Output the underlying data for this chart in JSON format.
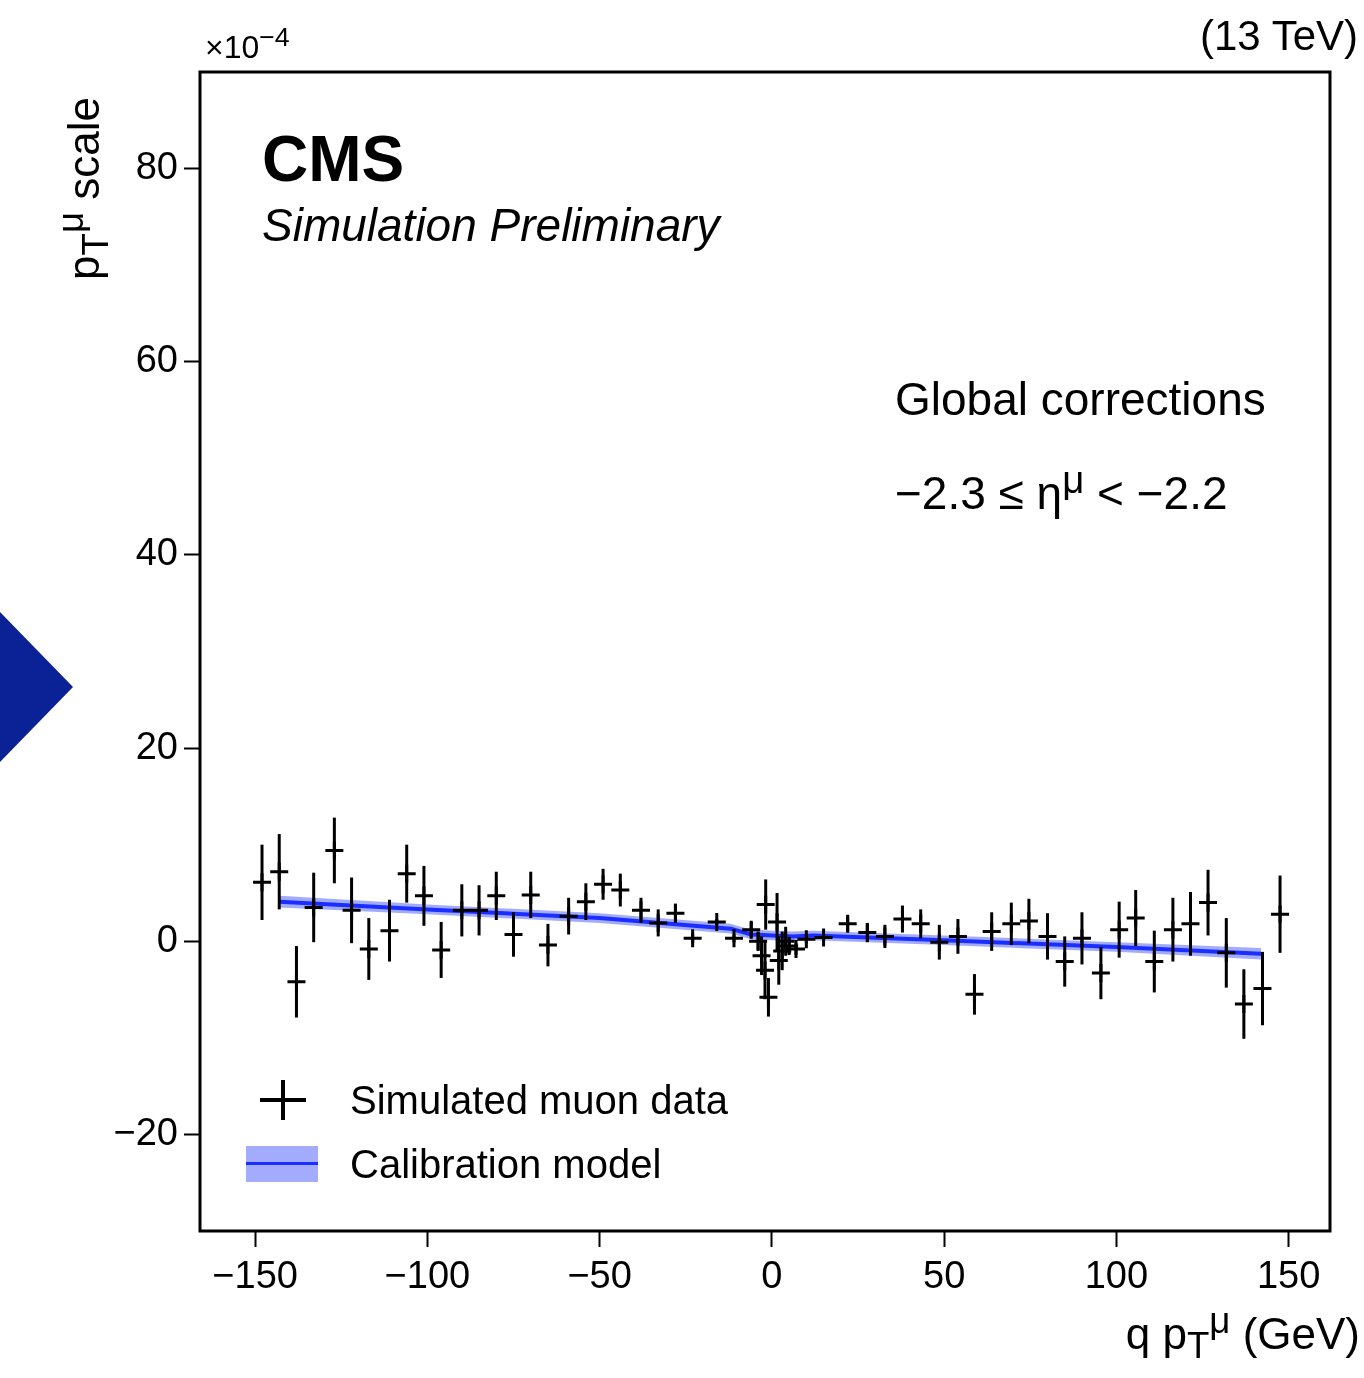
{
  "chart_data": {
    "type": "scatter",
    "xlabel": "q p$_{T}$$^{μ}$ (GeV)",
    "ylabel": "p$_{T}$$^{μ}$ scale",
    "annotations": [
      "CMS",
      "Simulation Preliminary",
      "(13 TeV)",
      "×10$^{−4}$",
      "Global corrections",
      "−2.3 ≤ η$^{μ}$ < −2.2"
    ],
    "xlim": [
      -166,
      162
    ],
    "xticks": [
      -150,
      -100,
      -50,
      0,
      50,
      100,
      150
    ],
    "ylim": [
      -30,
      90
    ],
    "yticks": [
      -20,
      0,
      20,
      40,
      60,
      80
    ],
    "legend": "bottom left",
    "grid": false,
    "series": [
      {
        "name": "Simulated muon data",
        "marker": "cross",
        "color": "#000000",
        "x": [
          -148,
          -143,
          -138,
          -133,
          -127,
          -122,
          -117,
          -111,
          -106,
          -101,
          -96,
          -90,
          -85,
          -80,
          -75,
          -70,
          -65,
          -59,
          -54,
          -49,
          -44,
          -38,
          -33,
          -28,
          -23,
          -16,
          -11,
          -6,
          -4,
          -3,
          -2,
          -1.8,
          -1,
          1.5,
          2,
          3,
          4,
          5,
          7,
          10,
          15,
          22,
          27.7,
          32.8,
          37.9,
          43.2,
          48.6,
          54,
          58.8,
          63.8,
          69.5,
          74.6,
          80,
          85,
          90,
          95.5,
          100.8,
          105.6,
          111,
          116.4,
          121.5,
          126.6,
          131.9,
          137,
          142.4,
          147.5
        ],
        "values": [
          6.1,
          7.2,
          -4.2,
          3.5,
          9.4,
          3.2,
          -0.8,
          1.1,
          7.0,
          4.7,
          -0.9,
          3.2,
          3.2,
          4.7,
          0.7,
          4.8,
          -0.4,
          2.6,
          4.1,
          5.9,
          5.3,
          3.2,
          1.9,
          2.9,
          0.3,
          2.0,
          0.3,
          1.2,
          0,
          -1.5,
          -3,
          3.8,
          -5.8,
          2,
          -2,
          -1,
          0,
          -0.5,
          -0.8,
          0.2,
          0.4,
          1.8,
          0.9,
          0.5,
          2.3,
          1.8,
          -0.1,
          0.5,
          -5.5,
          1.0,
          1.8,
          2.1,
          0.5,
          -2.1,
          0.3,
          -3.3,
          1.2,
          2.4,
          -2.1,
          1.2,
          1.8,
          4.0,
          -1.2,
          -6.5,
          -4.9,
          2.8
        ],
        "errors": [
          3.9,
          3.9,
          3.7,
          3.6,
          3.4,
          3.4,
          3.2,
          3.2,
          3.0,
          3.1,
          2.9,
          2.7,
          2.6,
          2.5,
          2.3,
          2.4,
          2.2,
          1.9,
          1.9,
          1.6,
          1.7,
          1.3,
          1.4,
          1.0,
          0.5,
          0.3,
          0.4,
          0.8,
          1,
          2,
          3,
          2.6,
          2,
          3,
          2.5,
          2,
          1.5,
          0.8,
          0.6,
          0.4,
          0.4,
          0.8,
          1.0,
          1.2,
          1.4,
          1.5,
          1.8,
          1.8,
          2.1,
          2.0,
          2.2,
          2.3,
          2.4,
          2.6,
          2.7,
          2.7,
          2.9,
          2.9,
          3.2,
          3.3,
          3.3,
          3.4,
          3.6,
          3.6,
          3.8,
          4.0
        ]
      },
      {
        "name": "Calibration model",
        "type": "line",
        "color": "#1a2eff",
        "x": [
          -143,
          -100,
          -50,
          -12,
          -6,
          6,
          12,
          50,
          100,
          142
        ],
        "values": [
          4.1,
          3.3,
          2.4,
          1.3,
          0.7,
          0.5,
          0.6,
          0.1,
          -0.6,
          -1.3
        ],
        "lower": [
          3.5,
          2.8,
          1.9,
          0.8,
          0.2,
          0.0,
          0.1,
          -0.4,
          -1.1,
          -1.9
        ],
        "upper": [
          4.7,
          3.8,
          2.9,
          1.8,
          1.2,
          1.0,
          1.1,
          0.6,
          -0.1,
          -0.7
        ]
      }
    ]
  }
}
